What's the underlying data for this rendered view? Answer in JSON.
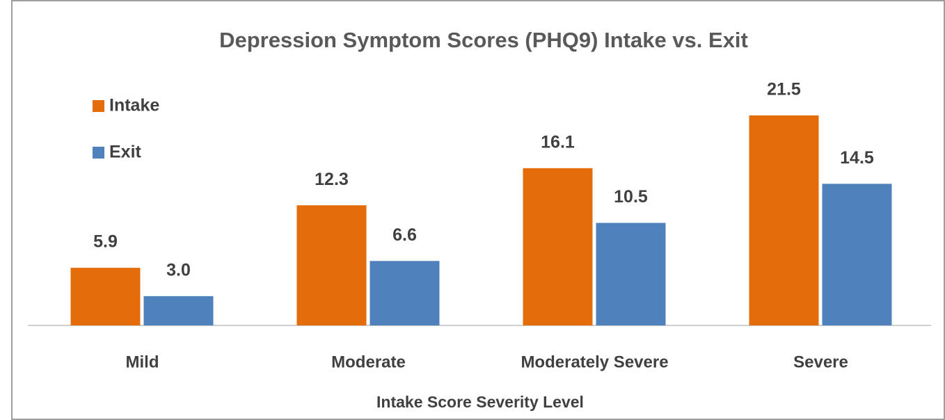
{
  "chart_data": {
    "type": "bar",
    "title": "Depression Symptom Scores (PHQ9) Intake vs. Exit",
    "x_label": "Intake Score Severity Level",
    "categories": [
      "Mild",
      "Moderate",
      "Moderately Severe",
      "Severe"
    ],
    "series": [
      {
        "name": "Intake",
        "color": "#e46c0a",
        "values": [
          5.9,
          12.3,
          16.1,
          21.5
        ],
        "value_labels": [
          "5.9",
          "12.3",
          "16.1",
          "21.5"
        ]
      },
      {
        "name": "Exit",
        "color": "#4f81bd",
        "values": [
          3.0,
          6.6,
          10.5,
          14.5
        ],
        "value_labels": [
          "3.0",
          "6.6",
          "10.5",
          "14.5"
        ]
      }
    ],
    "legend": "top-left"
  }
}
